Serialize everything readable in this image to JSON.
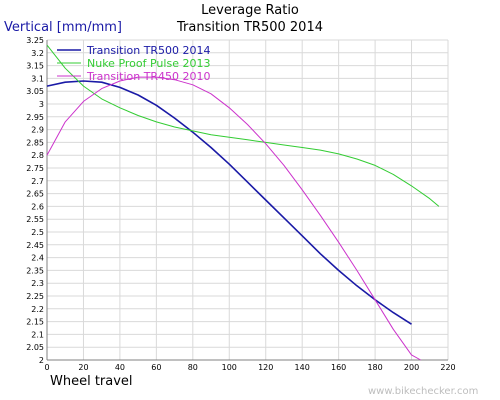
{
  "chart_data": {
    "type": "line",
    "title": "Leverage Ratio",
    "subtitle": "Transition TR500 2014",
    "ylabel": "Vertical [mm/mm]",
    "xlabel": "Wheel travel",
    "watermark": "www.bikechecker.com",
    "xlim": [
      0,
      220
    ],
    "ylim": [
      2,
      3.25
    ],
    "x_ticks": [
      "0",
      "20",
      "40",
      "60",
      "80",
      "100",
      "120",
      "140",
      "160",
      "180",
      "200",
      "220"
    ],
    "y_ticks": [
      "2",
      "2.05",
      "2.1",
      "2.15",
      "2.2",
      "2.25",
      "2.3",
      "2.35",
      "2.4",
      "2.45",
      "2.5",
      "2.55",
      "2.6",
      "2.65",
      "2.7",
      "2.75",
      "2.8",
      "2.85",
      "2.9",
      "2.95",
      "3",
      "3.05",
      "3.1",
      "3.15",
      "3.2",
      "3.25"
    ],
    "grid": true,
    "legend_position": "top-left",
    "series": [
      {
        "name": "Transition TR500 2014",
        "color": "#1a1aa6",
        "x": [
          0,
          10,
          20,
          30,
          40,
          50,
          60,
          70,
          80,
          90,
          100,
          110,
          120,
          130,
          140,
          150,
          160,
          170,
          180,
          190,
          200
        ],
        "y": [
          3.07,
          3.085,
          3.09,
          3.085,
          3.065,
          3.035,
          2.995,
          2.945,
          2.89,
          2.83,
          2.765,
          2.695,
          2.625,
          2.555,
          2.485,
          2.415,
          2.35,
          2.29,
          2.235,
          2.185,
          2.14
        ]
      },
      {
        "name": "Nuke Proof Pulse 2013",
        "color": "#33cc33",
        "x": [
          0,
          10,
          20,
          30,
          40,
          50,
          60,
          70,
          80,
          90,
          100,
          110,
          120,
          130,
          140,
          150,
          160,
          170,
          180,
          190,
          200,
          210,
          215
        ],
        "y": [
          3.23,
          3.14,
          3.07,
          3.02,
          2.985,
          2.955,
          2.93,
          2.91,
          2.895,
          2.88,
          2.87,
          2.86,
          2.85,
          2.84,
          2.83,
          2.82,
          2.805,
          2.785,
          2.76,
          2.725,
          2.68,
          2.63,
          2.6
        ]
      },
      {
        "name": "Transition TR450 2010",
        "color": "#cc33cc",
        "x": [
          0,
          10,
          20,
          30,
          40,
          50,
          60,
          70,
          80,
          90,
          100,
          110,
          120,
          130,
          140,
          150,
          160,
          170,
          180,
          190,
          200,
          205
        ],
        "y": [
          2.8,
          2.93,
          3.01,
          3.06,
          3.09,
          3.105,
          3.105,
          3.095,
          3.075,
          3.04,
          2.985,
          2.92,
          2.845,
          2.76,
          2.665,
          2.565,
          2.46,
          2.35,
          2.235,
          2.12,
          2.02,
          2.0
        ]
      }
    ]
  }
}
